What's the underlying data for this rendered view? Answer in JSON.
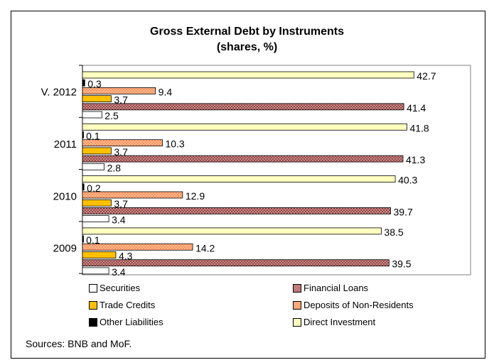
{
  "chart_data": {
    "type": "bar",
    "orientation": "horizontal",
    "title": "Gross External Debt by Instruments",
    "subtitle": "(shares, %)",
    "categories": [
      "V. 2012",
      "2011",
      "2010",
      "2009"
    ],
    "series": [
      {
        "name": "Securities",
        "color": "#ffffff",
        "values": [
          2.5,
          2.8,
          3.4,
          3.4
        ]
      },
      {
        "name": "Financial Loans",
        "color": "#c47a7a",
        "values": [
          41.4,
          41.3,
          39.7,
          39.5
        ]
      },
      {
        "name": "Trade Credits",
        "color": "#ffc000",
        "values": [
          3.7,
          3.7,
          3.7,
          4.3
        ]
      },
      {
        "name": "Deposits of Non-Residents",
        "color": "#ffa97a",
        "values": [
          9.4,
          10.3,
          12.9,
          14.2
        ]
      },
      {
        "name": "Other Liabilities",
        "color": "#000000",
        "values": [
          0.3,
          0.1,
          0.2,
          0.1
        ]
      },
      {
        "name": "Direct Investment",
        "color": "#ffffc0",
        "values": [
          42.7,
          41.8,
          40.3,
          38.5
        ]
      }
    ],
    "xlim": [
      0,
      50
    ],
    "grid": false,
    "legend_placement": "bottom"
  },
  "source": "Sources: BNB and MoF."
}
